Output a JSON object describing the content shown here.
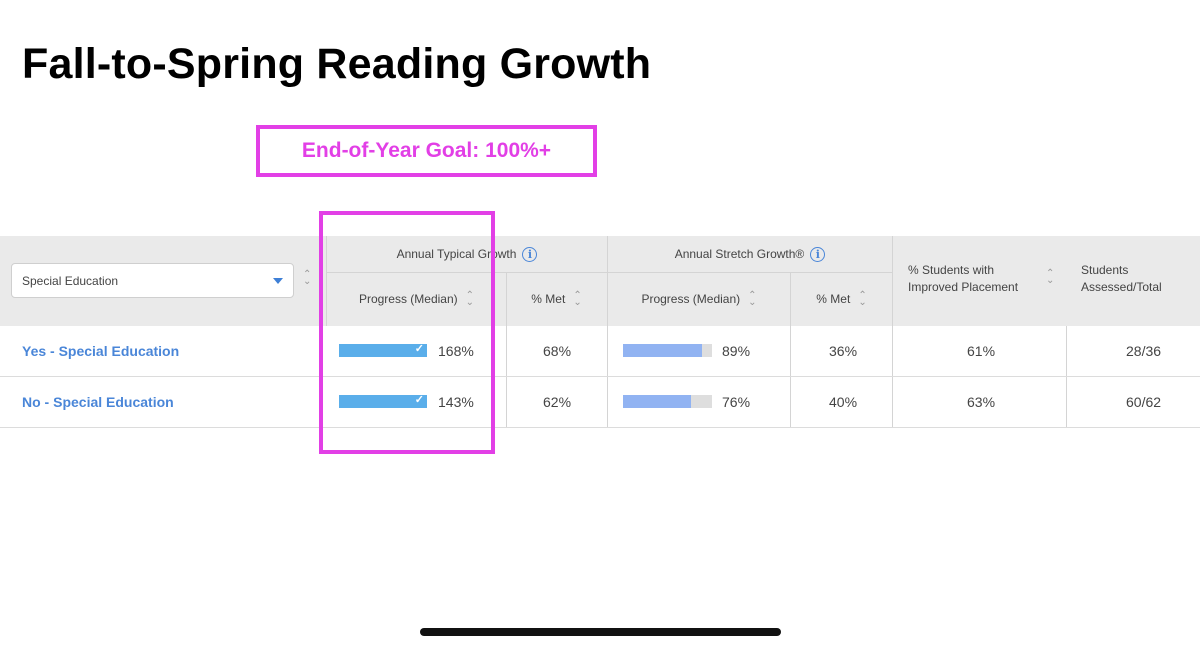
{
  "title": "Fall-to-Spring Reading Growth",
  "goal": "End-of-Year Goal: 100%+",
  "filter": {
    "selected": "Special Education"
  },
  "groups": {
    "typical": "Annual Typical Growth",
    "stretch": "Annual Stretch Growth®"
  },
  "columns": {
    "typical_progress": "Progress (Median)",
    "typical_met": "% Met",
    "stretch_progress": "Progress (Median)",
    "stretch_met": "% Met",
    "improved": "% Students with Improved Placement",
    "assessed": "Students Assessed/Total"
  },
  "colors": {
    "accent": "#e23fe6",
    "link": "#4a86d8",
    "typical_bar": "#5aaeea",
    "stretch_bar": "#91b3f2",
    "header_bg": "#eaeaea"
  },
  "rows": [
    {
      "label": "Yes - Special Education",
      "typical_progress": "168%",
      "typical_progress_value": 168,
      "typical_met_goal": true,
      "typical_met": "68%",
      "stretch_progress": "89%",
      "stretch_progress_value": 89,
      "stretch_met": "36%",
      "improved": "61%",
      "assessed": "28/36"
    },
    {
      "label": "No - Special Education",
      "typical_progress": "143%",
      "typical_progress_value": 143,
      "typical_met_goal": true,
      "typical_met": "62%",
      "stretch_progress": "76%",
      "stretch_progress_value": 76,
      "stretch_met": "40%",
      "improved": "63%",
      "assessed": "60/62"
    }
  ]
}
